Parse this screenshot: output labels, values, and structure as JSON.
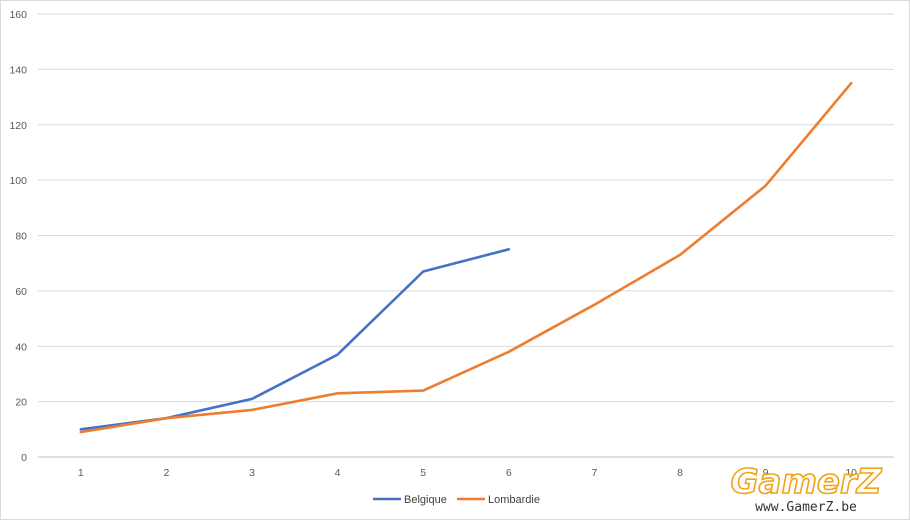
{
  "chart_data": {
    "type": "line",
    "title": "",
    "xlabel": "",
    "ylabel": "",
    "x": [
      1,
      2,
      3,
      4,
      5,
      6,
      7,
      8,
      9,
      10
    ],
    "ylim": [
      0,
      160
    ],
    "yticks": [
      0,
      20,
      40,
      60,
      80,
      100,
      120,
      140,
      160
    ],
    "grid": "horizontal",
    "legend": "bottom-center",
    "series": [
      {
        "name": "Belgique",
        "color": "#4472c4",
        "values": [
          10,
          14,
          21,
          37,
          67,
          75,
          null,
          null,
          null,
          null
        ]
      },
      {
        "name": "Lombardie",
        "color": "#ed7d31",
        "values": [
          9,
          14,
          17,
          23,
          24,
          38,
          55,
          73,
          98,
          135
        ]
      }
    ]
  },
  "watermark": {
    "logo_text": "GamerZ",
    "url_text": "www.GamerZ.be"
  }
}
